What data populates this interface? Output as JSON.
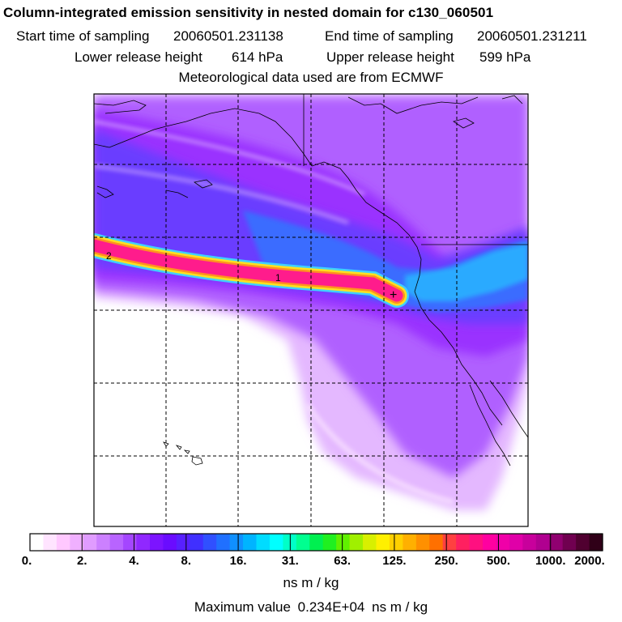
{
  "header": {
    "title": "Column-integrated emission sensitivity in nested domain for c130_060501",
    "start_label": "Start time of sampling",
    "start_value": "20060501.231138",
    "end_label": "End time of sampling",
    "end_value": "20060501.231211",
    "lower_label": "Lower release height",
    "lower_value": "614 hPa",
    "upper_label": "Upper release height",
    "upper_value": "599 hPa",
    "met_line": "Meteorological data used are from ECMWF"
  },
  "map": {
    "plume_labels": [
      "2",
      "1"
    ],
    "release_marker": "+",
    "colors": {
      "background": "#ffffff",
      "light_violet": "#e4b8ff",
      "violet": "#b060ff",
      "purple": "#9a30ff",
      "blue_violet": "#6a3cff",
      "blue": "#3a6cff",
      "light_blue": "#2aaaff",
      "plume_core": "#ff1c8c",
      "plume_edge": "#ff9020",
      "plume_rim": "#ffe020"
    }
  },
  "colorbar": {
    "ticks": [
      "0.",
      "2.",
      "4.",
      "8.",
      "16.",
      "31.",
      "63.",
      "125.",
      "250.",
      "500.",
      "1000.",
      "2000."
    ],
    "colors": [
      "#ffffff",
      "#ffe4ff",
      "#ffc8ff",
      "#f0b0ff",
      "#e09cff",
      "#cc80ff",
      "#b864ff",
      "#a446ff",
      "#9028ff",
      "#7c14ff",
      "#6a0cff",
      "#5820ff",
      "#4030ff",
      "#3050ff",
      "#2070ff",
      "#1090ff",
      "#00b4ff",
      "#00dcff",
      "#00ffff",
      "#00ffc8",
      "#00ff90",
      "#00f050",
      "#20f020",
      "#60f000",
      "#a0f000",
      "#d8f000",
      "#fff000",
      "#ffd000",
      "#ffb000",
      "#ff9000",
      "#ff7000",
      "#ff4040",
      "#ff2060",
      "#ff1080",
      "#ff00a0",
      "#f000a8",
      "#e000a8",
      "#c8009c",
      "#b00090",
      "#900070",
      "#700050",
      "#500030",
      "#300018"
    ],
    "units": "ns m / kg"
  },
  "footer": {
    "max_label": "Maximum value",
    "max_value": "0.234E+04",
    "max_units": "ns m / kg"
  }
}
